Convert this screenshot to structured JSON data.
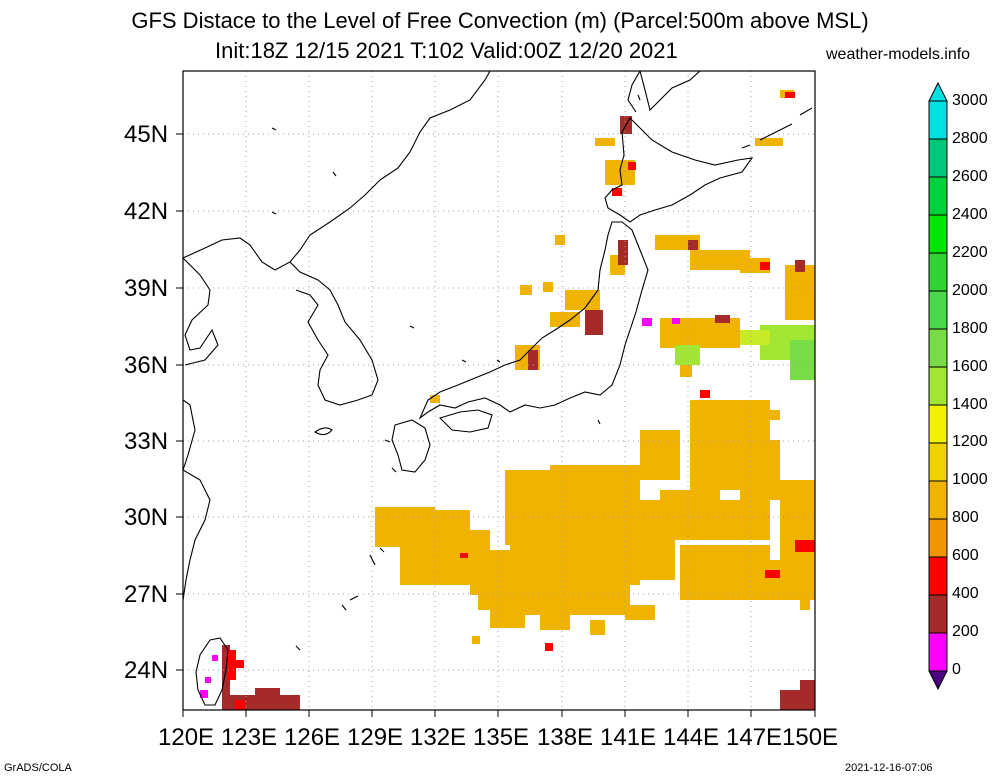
{
  "title": {
    "line1": "GFS Distace to the Level of Free Convection (m) (Parcel:500m above MSL)",
    "line2": "Init:18Z 12/15 2021 T:102 Valid:00Z 12/20 2021",
    "site": "weather-models.info"
  },
  "footer": {
    "left": "GrADS/COLA",
    "right": "2021-12-16-07:06"
  },
  "axes": {
    "lat_labels": [
      "45N",
      "42N",
      "39N",
      "36N",
      "33N",
      "30N",
      "27N",
      "24N"
    ],
    "lon_labels": [
      "120E",
      "123E",
      "126E",
      "129E",
      "132E",
      "135E",
      "138E",
      "141E",
      "144E",
      "147E",
      "150E"
    ]
  },
  "colorbar": {
    "labels": [
      "3000",
      "2800",
      "2600",
      "2400",
      "2200",
      "2000",
      "1800",
      "1600",
      "1400",
      "1200",
      "1000",
      "800",
      "600",
      "400",
      "200",
      "0"
    ],
    "colors": [
      "#00e0e0",
      "#00c87a",
      "#00d23c",
      "#00e600",
      "#32d232",
      "#4bd94b",
      "#78dc46",
      "#a0e632",
      "#f0f000",
      "#f0d200",
      "#f0b400",
      "#f09600",
      "#ff0000",
      "#a52a2a",
      "#ff00ff",
      "#4b0082"
    ]
  }
}
